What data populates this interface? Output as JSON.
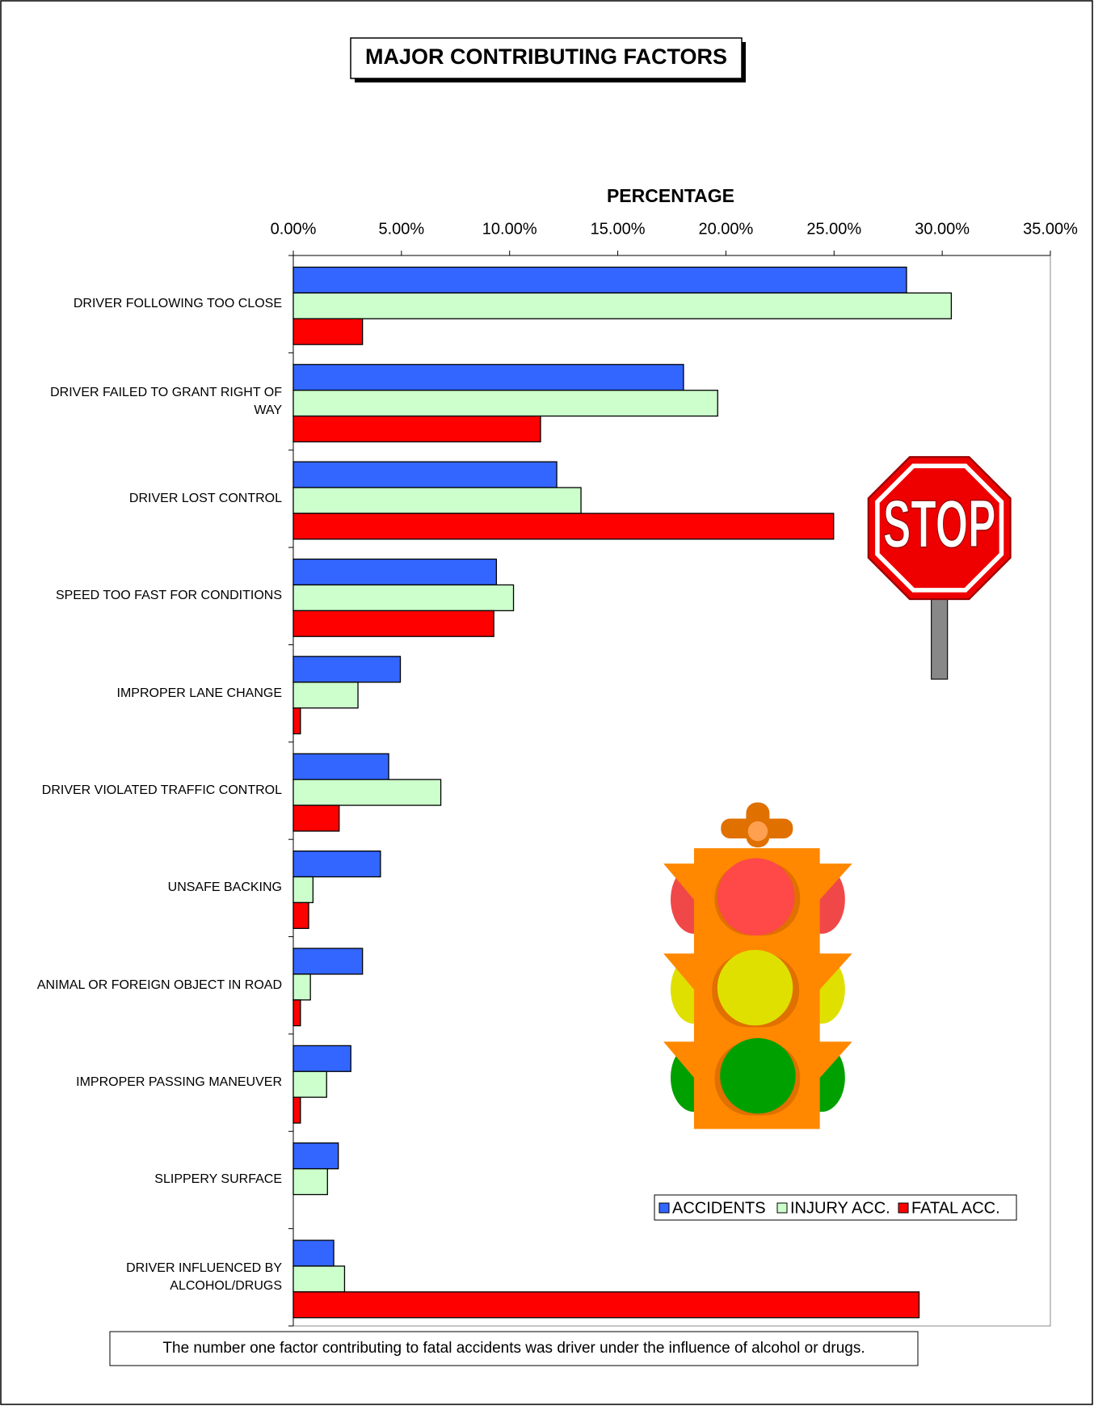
{
  "chart_data": {
    "type": "hbar",
    "title": "MAJOR CONTRIBUTING FACTORS",
    "x_label": "PERCENTAGE",
    "categories": [
      "DRIVER FOLLOWING TOO CLOSE",
      "DRIVER FAILED TO GRANT RIGHT OF WAY",
      "DRIVER LOST CONTROL",
      "SPEED TOO FAST FOR CONDITIONS",
      "IMPROPER LANE CHANGE",
      "DRIVER VIOLATED TRAFFIC CONTROL",
      "UNSAFE BACKING",
      "ANIMAL OR FOREIGN OBJECT IN ROAD",
      "IMPROPER PASSING MANEUVER",
      "SLIPPERY SURFACE",
      "DRIVER INFLUENCED BY ALCOHOL/DRUGS"
    ],
    "series": [
      {
        "name": "ACCIDENTS",
        "color": "#3366ff",
        "values": [
          28.35,
          18.04,
          12.18,
          9.39,
          4.95,
          4.41,
          4.03,
          3.2,
          2.66,
          2.08,
          1.87
        ]
      },
      {
        "name": "INJURY ACC.",
        "color": "#ccffcc",
        "values": [
          30.42,
          19.62,
          13.3,
          10.18,
          2.99,
          6.82,
          0.91,
          0.79,
          1.54,
          1.58,
          2.37
        ]
      },
      {
        "name": "FATAL ACC.",
        "color": "#ff0000",
        "values": [
          3.2,
          11.43,
          24.98,
          9.27,
          0.33,
          2.12,
          0.71,
          0.33,
          0.33,
          0,
          28.93
        ]
      }
    ],
    "xlim": [
      0,
      35
    ],
    "xticks": [
      {
        "value": 0,
        "label": "0.00%"
      },
      {
        "value": 5,
        "label": "5.00%"
      },
      {
        "value": 10,
        "label": "10.00%"
      },
      {
        "value": 15,
        "label": "15.00%"
      },
      {
        "value": 20,
        "label": "20.00%"
      },
      {
        "value": 25,
        "label": "25.00%"
      },
      {
        "value": 30,
        "label": "30.00%"
      },
      {
        "value": 35,
        "label": "35.00%"
      }
    ],
    "grid": false,
    "legend_position": "bottom-right",
    "stop_sign": "STOP",
    "note": "The number one factor contributing to fatal accidents was driver under the influence of alcohol or drugs."
  }
}
